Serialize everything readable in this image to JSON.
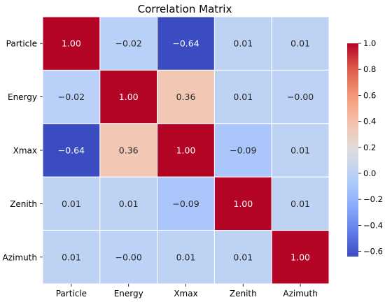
{
  "chart_data": {
    "type": "heatmap",
    "title": "Correlation Matrix",
    "xlabel": "",
    "ylabel": "",
    "x_categories": [
      "Particle",
      "Energy",
      "Xmax",
      "Zenith",
      "Azimuth"
    ],
    "y_categories": [
      "Particle",
      "Energy",
      "Xmax",
      "Zenith",
      "Azimuth"
    ],
    "values": [
      [
        1.0,
        -0.02,
        -0.64,
        0.01,
        0.01
      ],
      [
        -0.02,
        1.0,
        0.36,
        0.01,
        -0.0
      ],
      [
        -0.64,
        0.36,
        1.0,
        -0.09,
        0.01
      ],
      [
        0.01,
        0.01,
        -0.09,
        1.0,
        0.01
      ],
      [
        0.01,
        -0.0,
        0.01,
        0.01,
        1.0
      ]
    ],
    "value_labels": [
      [
        "1.00",
        "−0.02",
        "−0.64",
        "0.01",
        "0.01"
      ],
      [
        "−0.02",
        "1.00",
        "0.36",
        "0.01",
        "−0.00"
      ],
      [
        "−0.64",
        "0.36",
        "1.00",
        "−0.09",
        "0.01"
      ],
      [
        "0.01",
        "0.01",
        "−0.09",
        "1.00",
        "0.01"
      ],
      [
        "0.01",
        "−0.00",
        "0.01",
        "0.01",
        "1.00"
      ]
    ],
    "colormap": "coolwarm",
    "colorbar": {
      "range": [
        -0.64,
        1.0
      ],
      "ticks": [
        1.0,
        0.8,
        0.6,
        0.4,
        0.2,
        0.0,
        -0.2,
        -0.4,
        -0.6
      ],
      "tick_labels": [
        "1.0",
        "0.8",
        "0.6",
        "0.4",
        "0.2",
        "0.0",
        "−0.2",
        "−0.4",
        "−0.6"
      ],
      "placement": "right"
    },
    "grid": false
  }
}
